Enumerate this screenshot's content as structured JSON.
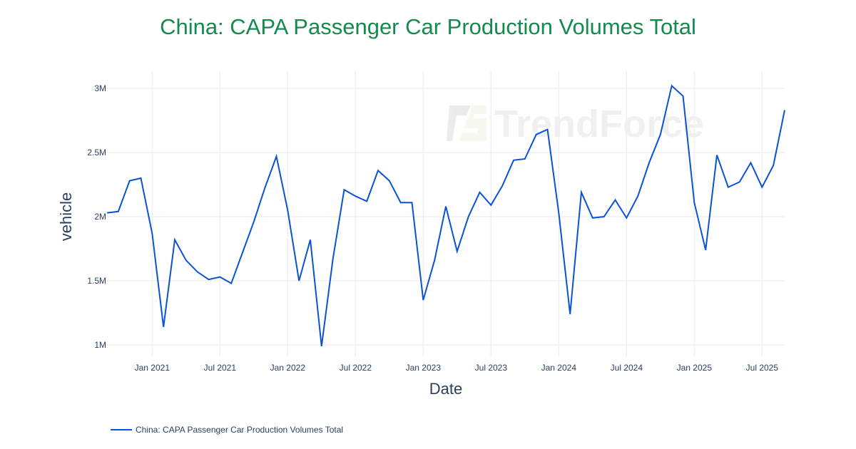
{
  "chart_data": {
    "type": "line",
    "title": "China: CAPA Passenger Car Production Volumes Total",
    "xlabel": "Date",
    "ylabel": "vehicle",
    "ylim": [
      0.9,
      3.13
    ],
    "y_unit": "M",
    "y_ticks": [
      "1M",
      "1.5M",
      "2M",
      "2.5M",
      "3M"
    ],
    "y_tick_values": [
      1,
      1.5,
      2,
      2.5,
      3
    ],
    "x_ticks": [
      "Jan 2021",
      "Jul 2021",
      "Jan 2022",
      "Jul 2022",
      "Jan 2023",
      "Jul 2023",
      "Jan 2024",
      "Jul 2024",
      "Jan 2025",
      "Jul 2025"
    ],
    "x_tick_values": [
      "2021-01",
      "2021-07",
      "2022-01",
      "2022-07",
      "2023-01",
      "2023-07",
      "2024-01",
      "2024-07",
      "2025-01",
      "2025-07"
    ],
    "xlim": [
      "2020-09",
      "2025-09"
    ],
    "grid": true,
    "legend_position": "bottom-left",
    "watermark": "TrendForce",
    "series": [
      {
        "name": "China: CAPA Passenger Car Production Volumes Total",
        "color": "#0a52d6",
        "x": [
          "2020-09",
          "2020-10",
          "2020-11",
          "2020-12",
          "2021-01",
          "2021-02",
          "2021-03",
          "2021-04",
          "2021-05",
          "2021-06",
          "2021-07",
          "2021-08",
          "2021-09",
          "2021-10",
          "2021-11",
          "2021-12",
          "2022-01",
          "2022-02",
          "2022-03",
          "2022-04",
          "2022-05",
          "2022-06",
          "2022-07",
          "2022-08",
          "2022-09",
          "2022-10",
          "2022-11",
          "2022-12",
          "2023-01",
          "2023-02",
          "2023-03",
          "2023-04",
          "2023-05",
          "2023-06",
          "2023-07",
          "2023-08",
          "2023-09",
          "2023-10",
          "2023-11",
          "2023-12",
          "2024-01",
          "2024-02",
          "2024-03",
          "2024-04",
          "2024-05",
          "2024-06",
          "2024-07",
          "2024-08",
          "2024-09",
          "2024-10",
          "2024-11",
          "2024-12",
          "2025-01",
          "2025-02",
          "2025-03",
          "2025-04",
          "2025-05",
          "2025-06",
          "2025-07",
          "2025-08",
          "2025-09"
        ],
        "values": [
          2.03,
          2.04,
          2.28,
          2.3,
          1.87,
          1.14,
          1.82,
          1.66,
          1.57,
          1.51,
          1.53,
          1.48,
          1.72,
          1.96,
          2.23,
          2.47,
          2.05,
          1.5,
          1.82,
          0.99,
          1.67,
          2.21,
          2.16,
          2.12,
          2.36,
          2.28,
          2.11,
          2.11,
          1.35,
          1.66,
          2.08,
          1.73,
          2.0,
          2.19,
          2.09,
          2.24,
          2.44,
          2.45,
          2.64,
          2.68,
          2.03,
          1.24,
          2.19,
          1.99,
          2.0,
          2.13,
          1.99,
          2.16,
          2.42,
          2.64,
          3.02,
          2.94,
          2.11,
          1.74,
          2.48,
          2.23,
          2.27,
          2.42,
          2.23,
          2.4,
          2.83
        ]
      }
    ]
  }
}
